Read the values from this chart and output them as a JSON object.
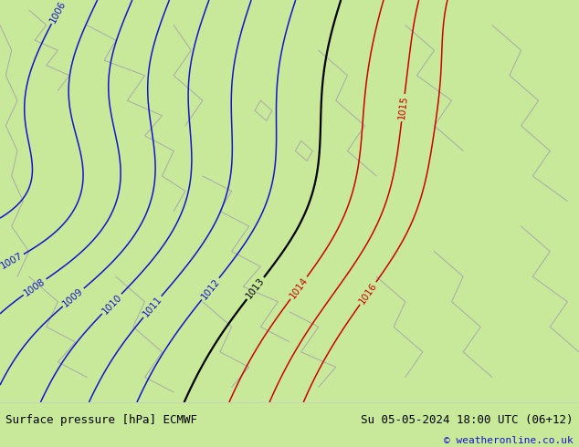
{
  "title_left": "Surface pressure [hPa] ECMWF",
  "title_right": "Su 05-05-2024 18:00 UTC (06+12)",
  "copyright": "© weatheronline.co.uk",
  "bg_color": "#c8e89a",
  "map_bg": "#c8e89a",
  "blue_contour_color": "#1414cc",
  "black_contour_color": "#000000",
  "red_contour_color": "#cc0000",
  "gray_line_color": "#aaaaaa",
  "label_fontsize": 7.5,
  "footer_fontsize": 9,
  "figsize": [
    6.34,
    4.9
  ],
  "dpi": 100
}
